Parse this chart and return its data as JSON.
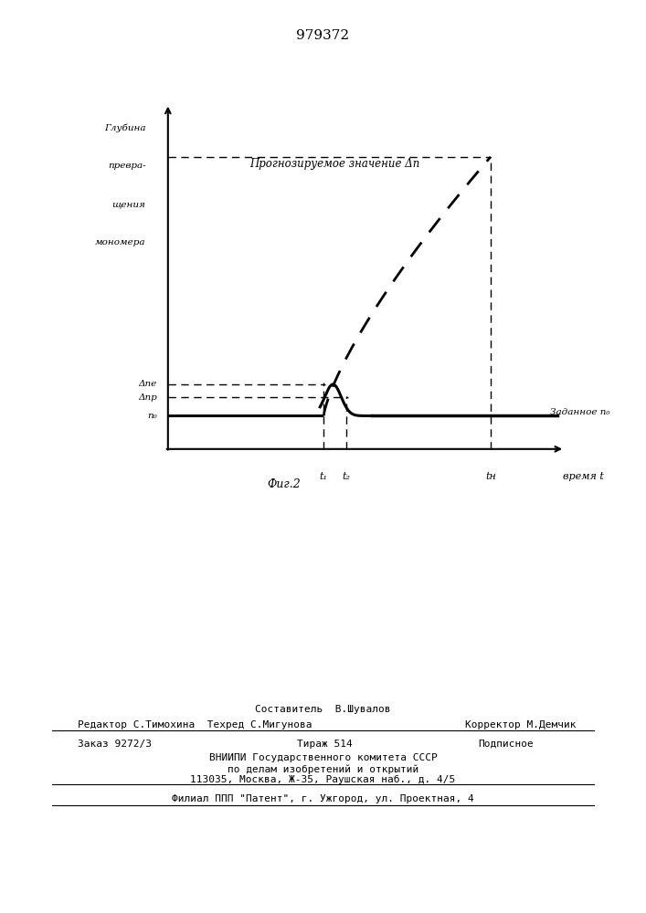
{
  "title": "979372",
  "fig_label": "Фиг.2",
  "ylabel_line1": "Глубина",
  "ylabel_line2": "превра-",
  "ylabel_line3": "щения",
  "ylabel_line4": "мономера",
  "annotation_prognoz": "Прогнозируемое значение Δп",
  "label_zadannoe": "Заданное n₀",
  "label_delta_pe": "Δпе",
  "label_delta_pr": "Δпр",
  "label_n0": "n₀",
  "label_t1": "t₁",
  "label_t2": "t₂",
  "label_tn": "tн",
  "xlabel_vremya": "время t",
  "bg_color": "#ffffff",
  "t1": 0.42,
  "t2": 0.48,
  "tn": 0.87,
  "n0": 0.1,
  "delta_pr": 0.155,
  "delta_pe": 0.195,
  "delta_n_final": 0.88,
  "text_sestavitel": "Составитель  В.Шувалов",
  "text_redaktor": "Редактор С.Тимохина  Техред С.Мигунова",
  "text_korrektor": "Корректор М.Демчик",
  "text_zakaz": "Заказ 9272/3",
  "text_tirazh": "Тираж 514",
  "text_podpisnoe": "Подписное",
  "text_vnipi": "ВНИИПИ Государственного комитета СССР",
  "text_po_delam": "по делам изобретений и открытий",
  "text_address": "113035, Москва, Ж-35, Раушская наб., д. 4/5",
  "text_filial": "Филиал ППП \"Патент\", г. Ужгород, ул. Проектная, 4"
}
